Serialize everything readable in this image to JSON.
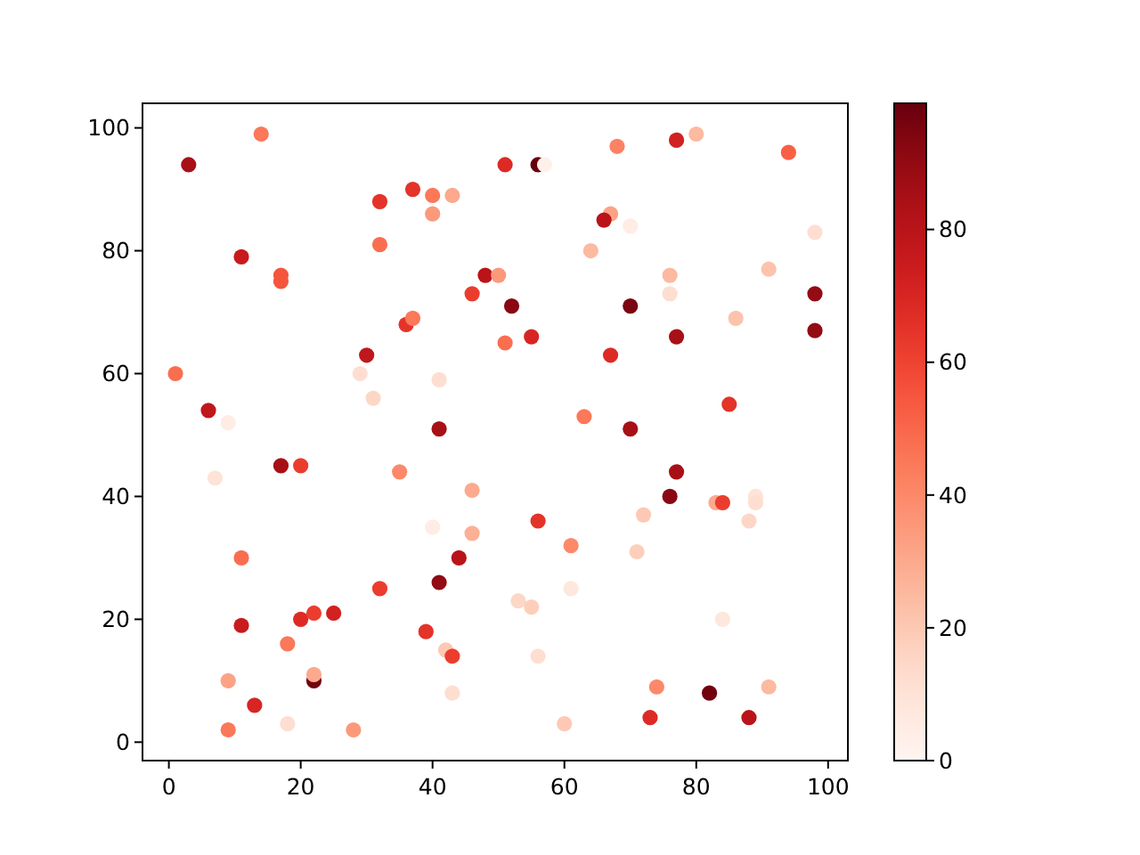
{
  "chart_data": {
    "type": "scatter",
    "marker": "circle",
    "x": [
      14,
      3,
      32,
      37,
      40,
      43,
      40,
      32,
      11,
      17,
      17,
      48,
      46,
      36,
      37,
      30,
      1,
      29,
      31,
      41,
      6,
      9,
      41,
      51,
      56,
      57,
      68,
      77,
      80,
      94,
      67,
      66,
      70,
      98,
      64,
      50,
      76,
      76,
      91,
      98,
      52,
      70,
      86,
      98,
      51,
      55,
      77,
      67,
      63,
      70,
      85,
      17,
      20,
      7,
      35,
      46,
      40,
      46,
      11,
      44,
      41,
      32,
      11,
      20,
      22,
      25,
      39,
      18,
      42,
      43,
      22,
      22,
      9,
      43,
      13,
      9,
      18,
      28,
      77,
      76,
      83,
      84,
      89,
      89,
      88,
      56,
      72,
      61,
      71,
      61,
      53,
      55,
      84,
      56,
      74,
      82,
      91,
      73,
      88,
      60
    ],
    "values": [
      99,
      94,
      88,
      90,
      89,
      89,
      86,
      81,
      79,
      76,
      75,
      76,
      73,
      68,
      69,
      63,
      60,
      60,
      56,
      59,
      54,
      52,
      51,
      94,
      94,
      94,
      97,
      98,
      99,
      96,
      86,
      85,
      84,
      83,
      80,
      76,
      76,
      73,
      77,
      73,
      71,
      71,
      69,
      67,
      65,
      66,
      66,
      63,
      53,
      51,
      55,
      45,
      45,
      43,
      44,
      41,
      35,
      34,
      30,
      30,
      26,
      25,
      19,
      20,
      21,
      21,
      18,
      16,
      15,
      14,
      10,
      11,
      10,
      8,
      6,
      2,
      3,
      2,
      44,
      40,
      39,
      39,
      40,
      39,
      36,
      36,
      37,
      32,
      31,
      25,
      23,
      22,
      20,
      14,
      9,
      8,
      9,
      4,
      4,
      3
    ],
    "cvalues": [
      45,
      85,
      65,
      65,
      45,
      30,
      35,
      48,
      75,
      55,
      55,
      80,
      62,
      65,
      45,
      78,
      48,
      12,
      15,
      12,
      78,
      5,
      85,
      68,
      99,
      3,
      42,
      72,
      25,
      52,
      32,
      80,
      5,
      12,
      25,
      35,
      25,
      12,
      22,
      90,
      92,
      95,
      22,
      90,
      48,
      70,
      85,
      68,
      45,
      85,
      65,
      85,
      62,
      10,
      40,
      30,
      5,
      28,
      48,
      80,
      90,
      62,
      75,
      68,
      62,
      72,
      65,
      45,
      20,
      62,
      97,
      30,
      32,
      12,
      70,
      45,
      12,
      35,
      85,
      92,
      30,
      62,
      10,
      12,
      15,
      65,
      20,
      40,
      18,
      8,
      15,
      18,
      8,
      12,
      40,
      97,
      25,
      68,
      80,
      20
    ],
    "xlim": [
      -4,
      103
    ],
    "ylim": [
      -3,
      104
    ],
    "xticks": [
      0,
      20,
      40,
      60,
      80,
      100
    ],
    "yticks": [
      0,
      20,
      40,
      60,
      80,
      100
    ],
    "clim": [
      0,
      99
    ],
    "cticks": [
      0,
      20,
      40,
      60,
      80
    ]
  }
}
